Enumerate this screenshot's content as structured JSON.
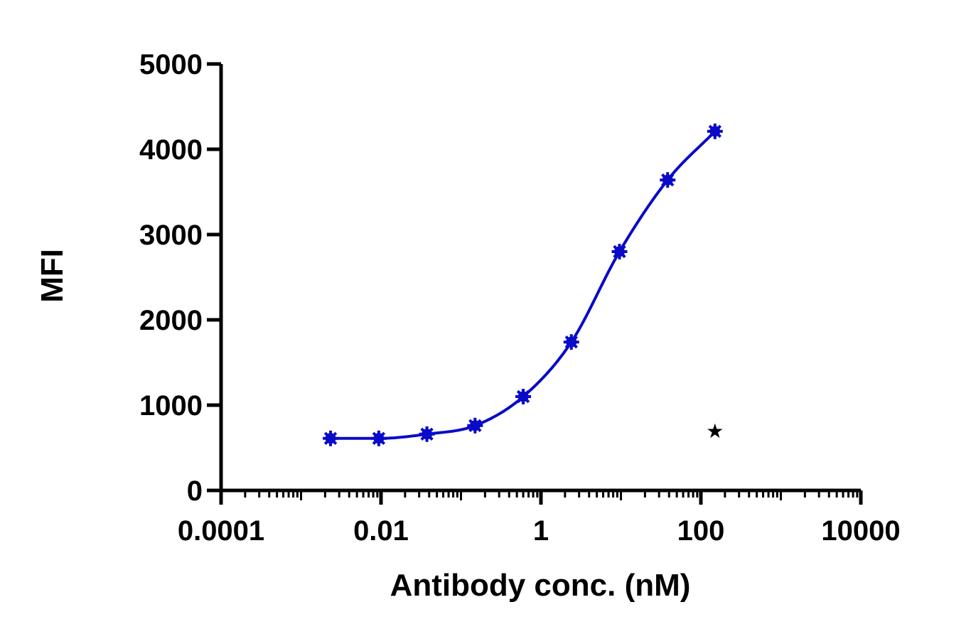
{
  "chart_data": {
    "type": "scatter",
    "xlabel": "Antibody conc. (nM)",
    "ylabel": "MFI",
    "x_scale": "log",
    "xlim": [
      0.0001,
      10000
    ],
    "ylim": [
      0,
      5000
    ],
    "x_ticks": [
      {
        "value": 0.0001,
        "label": "0.0001"
      },
      {
        "value": 0.01,
        "label": "0.01"
      },
      {
        "value": 1,
        "label": "1"
      },
      {
        "value": 100,
        "label": "100"
      },
      {
        "value": 10000,
        "label": "10000"
      }
    ],
    "y_ticks": [
      {
        "value": 0,
        "label": "0"
      },
      {
        "value": 1000,
        "label": "1000"
      },
      {
        "value": 2000,
        "label": "2000"
      },
      {
        "value": 3000,
        "label": "3000"
      },
      {
        "value": 4000,
        "label": "4000"
      },
      {
        "value": 5000,
        "label": "5000"
      }
    ],
    "grid": false,
    "series": [
      {
        "color": "#0a0ac8",
        "marker": "asterisk",
        "fit": "sigmoidal",
        "x": [
          0.00234,
          0.00938,
          0.0375,
          0.15,
          0.6,
          2.4,
          9.6,
          38.4,
          150
        ],
        "y": [
          610,
          610,
          660,
          760,
          1100,
          1740,
          2800,
          3640,
          4210
        ]
      }
    ],
    "annotations": [
      {
        "text": "★",
        "x": 150,
        "y": 700,
        "color": "#000000"
      }
    ]
  }
}
